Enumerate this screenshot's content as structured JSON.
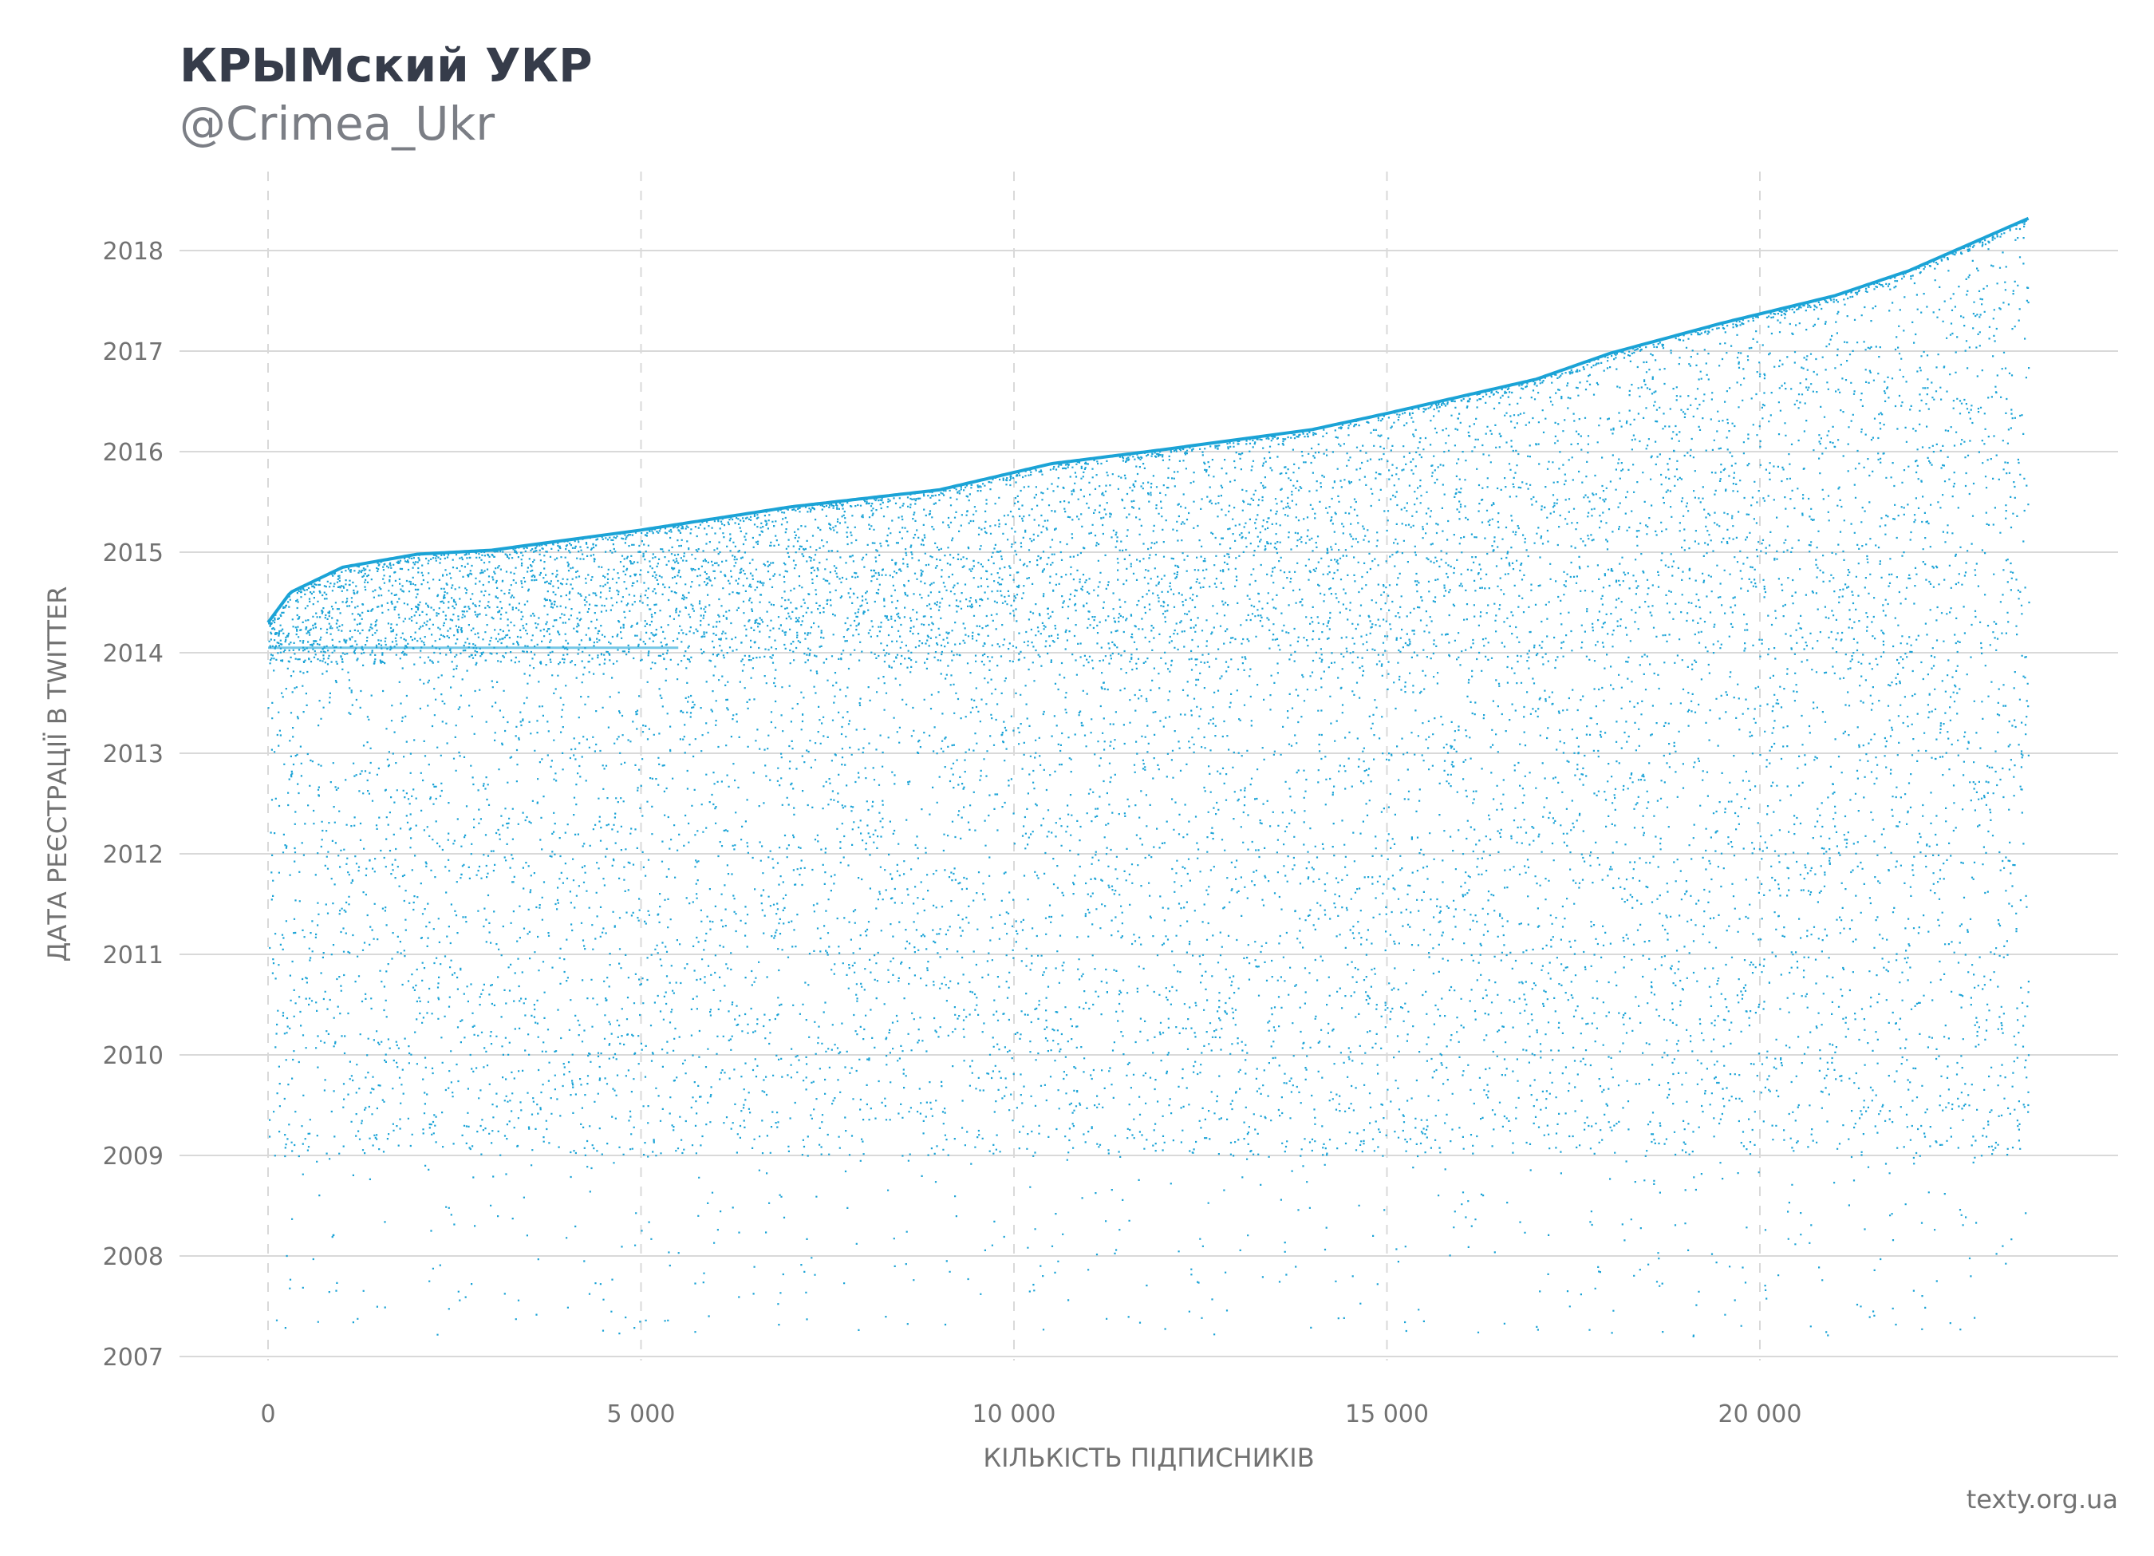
{
  "header": {
    "title": "КРЫМский УКР",
    "subtitle": "@Crimea_Ukr"
  },
  "source": "texty.org.ua",
  "colors": {
    "points": "#1ba3d6",
    "grid": "#d9d9d9",
    "text": "#727272"
  },
  "chart_data": {
    "type": "scatter",
    "xlabel": "КІЛЬКІСТЬ ПІДПИСНИКІВ",
    "ylabel": "ДАТА РЕЄСТРАЦІЇ В TWITTER",
    "xlim": [
      -3000,
      62100
    ],
    "ylim": [
      2006.75,
      2018.6
    ],
    "x_ticks": [
      0,
      5000,
      10000,
      15000,
      20000
    ],
    "x_tick_labels": [
      "0",
      "5 000",
      "10 000",
      "15 000",
      "20 000"
    ],
    "y_ticks": [
      2007,
      2008,
      2009,
      2010,
      2011,
      2012,
      2013,
      2014,
      2015,
      2016,
      2017,
      2018
    ],
    "y_tick_labels": [
      "2007",
      "2008",
      "2009",
      "2010",
      "2011",
      "2012",
      "2013",
      "2014",
      "2015",
      "2016",
      "2017",
      "2018"
    ],
    "x_grid": "dashed",
    "y_grid": "solid",
    "point_count": 23600,
    "upper_envelope": [
      [
        0,
        2014.3
      ],
      [
        300,
        2014.6
      ],
      [
        1000,
        2014.85
      ],
      [
        2000,
        2014.98
      ],
      [
        3000,
        2015.02
      ],
      [
        5000,
        2015.22
      ],
      [
        7000,
        2015.45
      ],
      [
        9000,
        2015.62
      ],
      [
        10500,
        2015.88
      ],
      [
        12000,
        2016.02
      ],
      [
        14000,
        2016.22
      ],
      [
        15000,
        2016.38
      ],
      [
        17000,
        2016.72
      ],
      [
        18000,
        2016.98
      ],
      [
        19500,
        2017.28
      ],
      [
        21000,
        2017.55
      ],
      [
        22000,
        2017.8
      ],
      [
        23600,
        2018.32
      ]
    ],
    "dense_band": [
      2013.9,
      2015.0
    ],
    "sparse_floor": 2009.0
  }
}
